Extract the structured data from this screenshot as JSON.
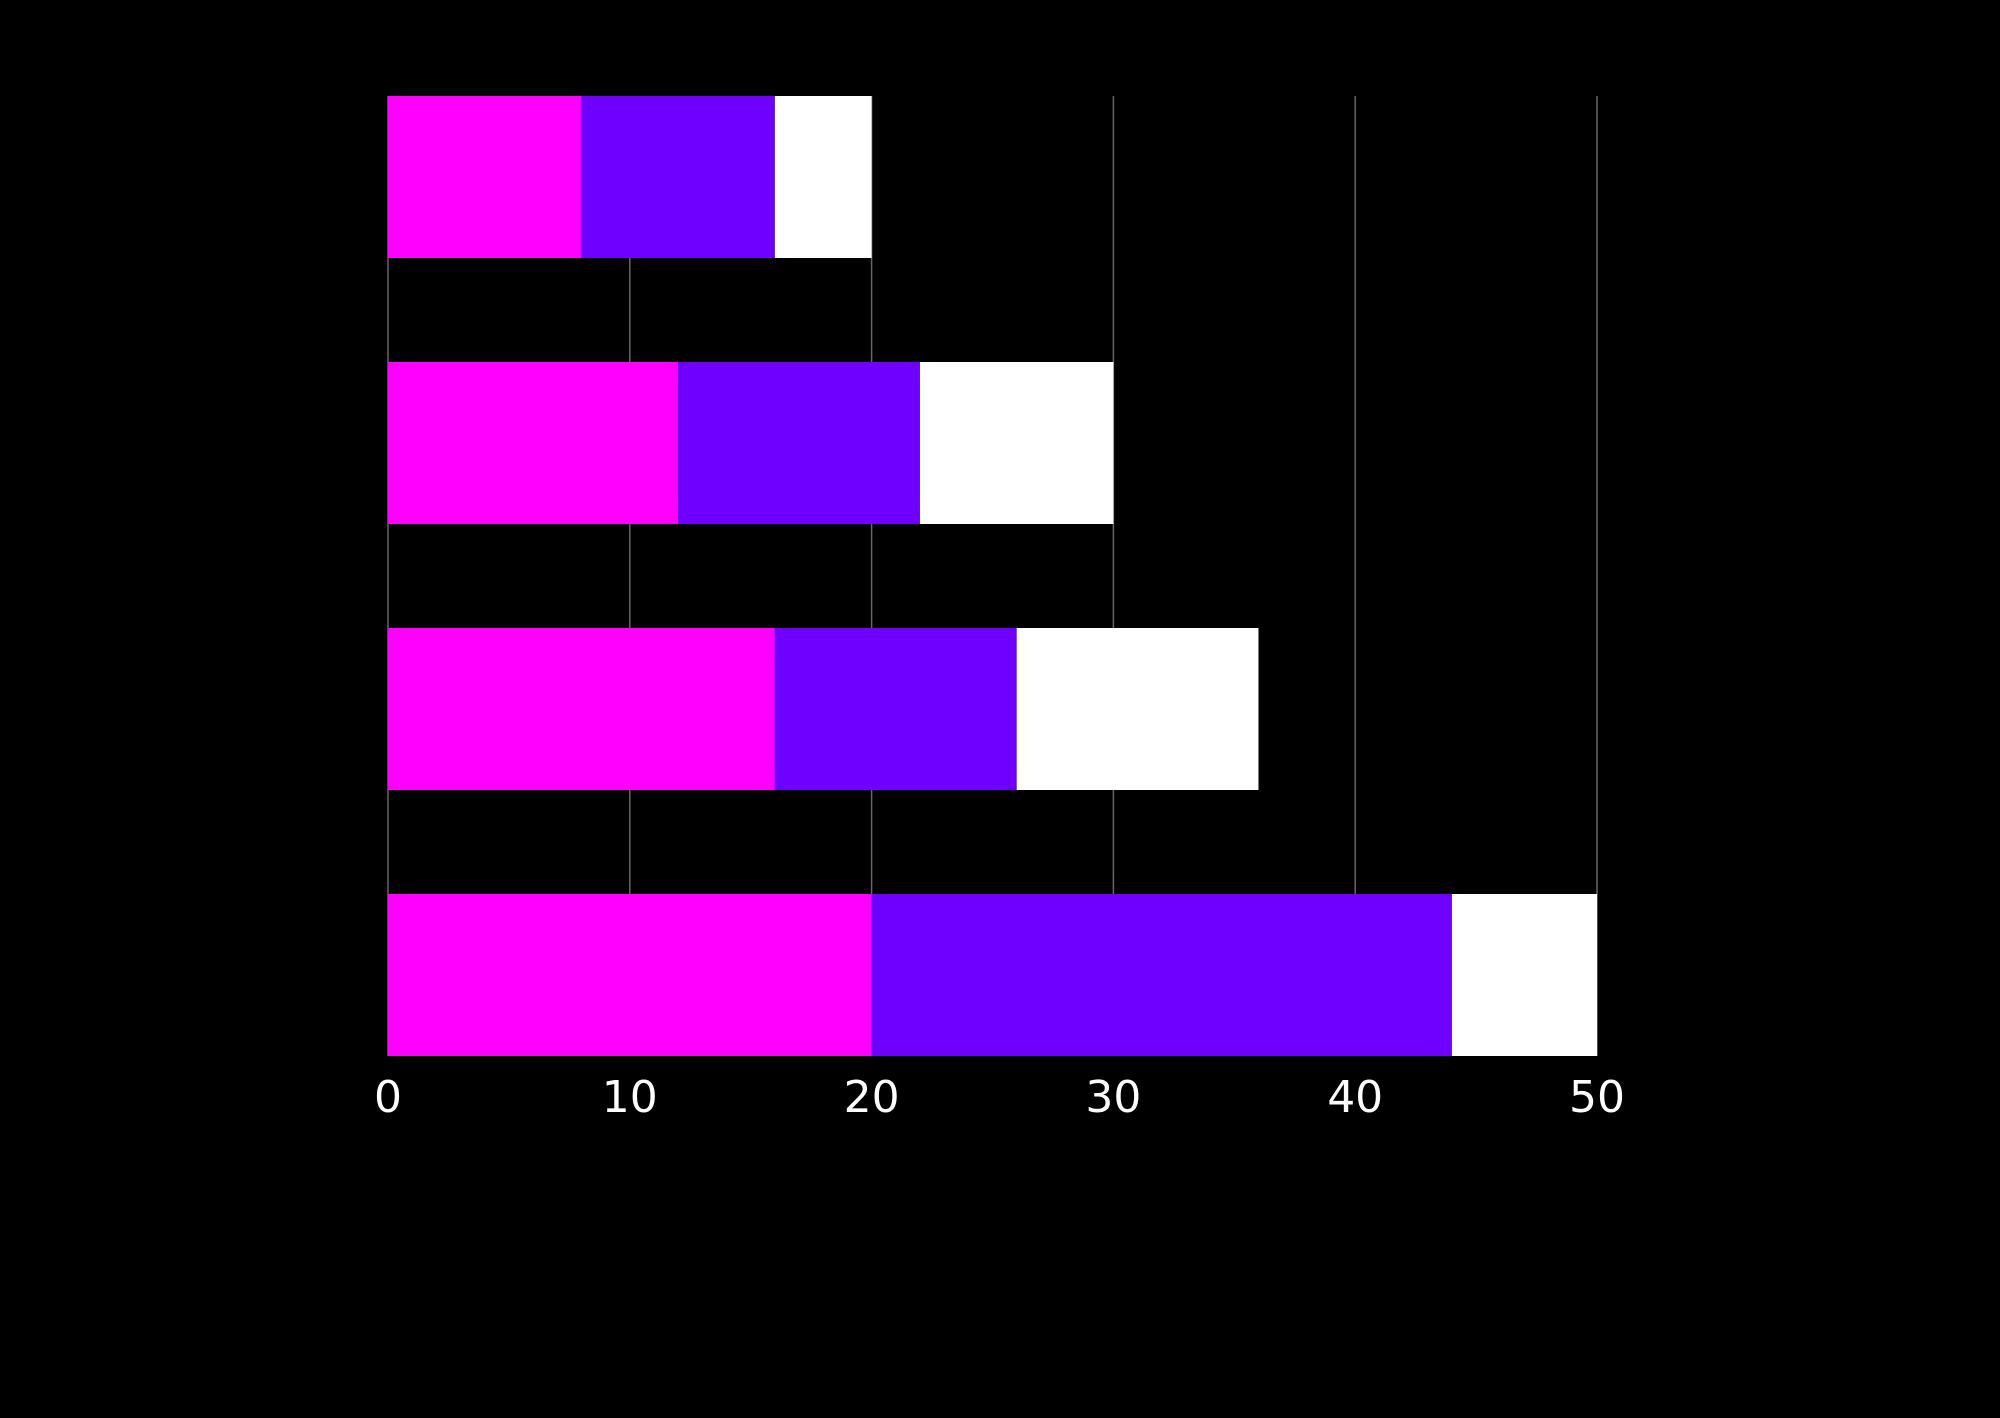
{
  "chart_data": {
    "type": "bar",
    "orientation": "horizontal",
    "stacked": true,
    "title": "",
    "xlabel": "",
    "ylabel": "",
    "categories": [
      "",
      "",
      "",
      ""
    ],
    "series": [
      {
        "color": "#FF00FF",
        "values": [
          8,
          12,
          16,
          20
        ]
      },
      {
        "color": "#6F00FF",
        "values": [
          8,
          10,
          10,
          24
        ]
      },
      {
        "color": "#FFFFFF",
        "values": [
          4,
          8,
          10,
          6
        ]
      }
    ],
    "xlim": [
      0,
      50
    ],
    "x_ticks": [
      "0",
      "10",
      "20",
      "30",
      "40",
      "50"
    ],
    "grid": "vertical",
    "legend": "none",
    "colors": {
      "background": "#000000",
      "grid": "#666666",
      "tick_label": "#FFFFFF"
    }
  }
}
